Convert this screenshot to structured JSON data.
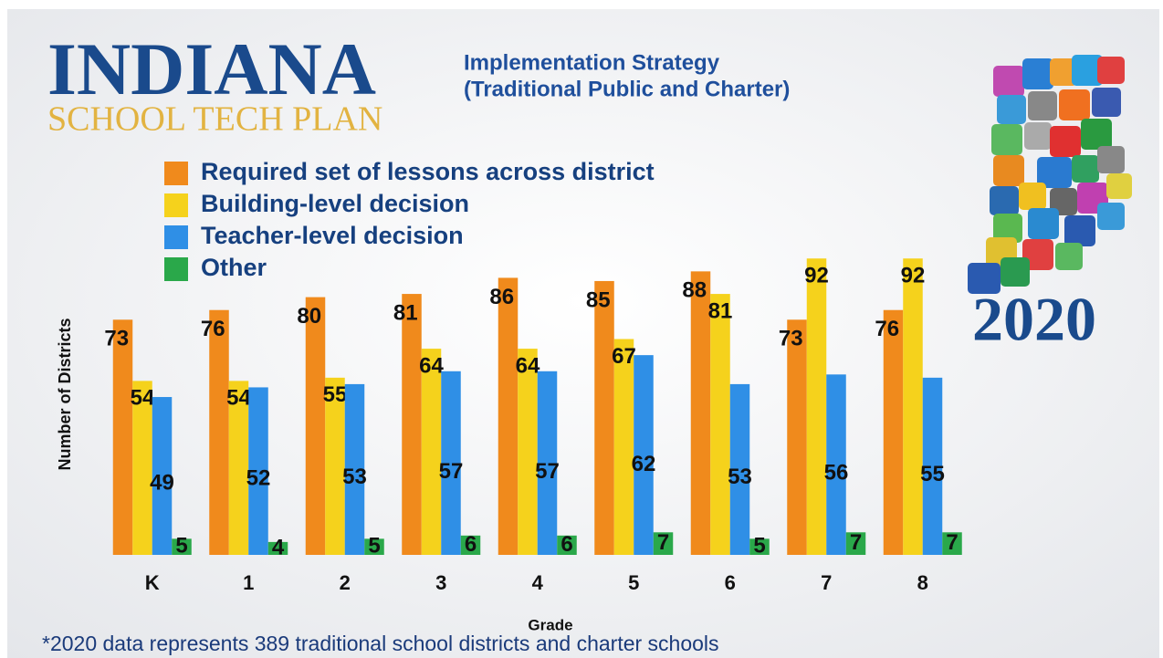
{
  "chart_data": {
    "type": "bar",
    "title": "Implementation Strategy",
    "subtitle": "(Traditional Public and Charter)",
    "annotations": [
      "INDIANA",
      "SCHOOL TECH PLAN",
      "2020",
      "*2020 data represents 389 traditional school districts and charter schools"
    ],
    "xlabel": "Grade",
    "ylabel": "Number of Districts",
    "categories": [
      "K",
      "1",
      "2",
      "3",
      "4",
      "5",
      "6",
      "7",
      "8"
    ],
    "series": [
      {
        "name": "Required set of lessons across district",
        "color": "#f08a1c",
        "values": [
          73,
          76,
          80,
          81,
          86,
          85,
          88,
          73,
          76
        ]
      },
      {
        "name": "Building-level decision",
        "color": "#f5d21c",
        "values": [
          54,
          54,
          55,
          64,
          64,
          67,
          81,
          92,
          92
        ]
      },
      {
        "name": "Teacher-level decision",
        "color": "#2f8fe6",
        "values": [
          49,
          52,
          53,
          57,
          57,
          62,
          53,
          56,
          55
        ]
      },
      {
        "name": "Other",
        "color": "#2aa84a",
        "values": [
          5,
          4,
          5,
          6,
          6,
          7,
          5,
          7,
          7
        ]
      }
    ],
    "ylim": [
      0,
      100
    ]
  }
}
